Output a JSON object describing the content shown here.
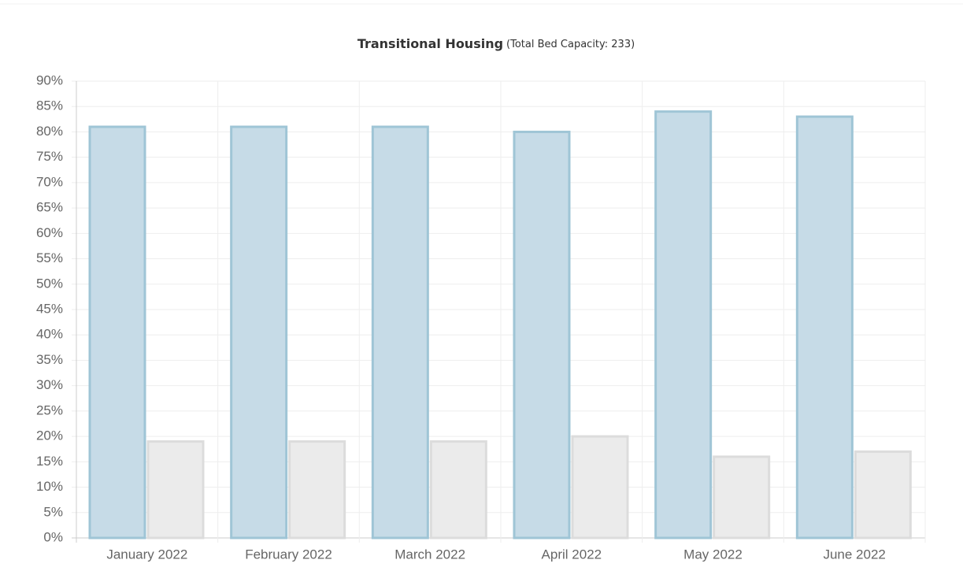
{
  "chart_data": {
    "type": "bar",
    "title": "Transitional Housing",
    "subtitle": "(Total Bed Capacity: 233)",
    "categories": [
      "January 2022",
      "February 2022",
      "March 2022",
      "April 2022",
      "May 2022",
      "June 2022"
    ],
    "series": [
      {
        "color": "#c6dbe7",
        "values": [
          81,
          81,
          81,
          80,
          84,
          83
        ]
      },
      {
        "color": "#ebebeb",
        "values": [
          19,
          19,
          19,
          20,
          16,
          17
        ]
      }
    ],
    "ylim": [
      0,
      90
    ],
    "yticks": [
      {
        "value": 0,
        "label": "0%"
      },
      {
        "value": 5,
        "label": "5%"
      },
      {
        "value": 10,
        "label": "10%"
      },
      {
        "value": 15,
        "label": "15%"
      },
      {
        "value": 20,
        "label": "20%"
      },
      {
        "value": 25,
        "label": "25%"
      },
      {
        "value": 30,
        "label": "30%"
      },
      {
        "value": 35,
        "label": "35%"
      },
      {
        "value": 40,
        "label": "40%"
      },
      {
        "value": 45,
        "label": "45%"
      },
      {
        "value": 50,
        "label": "50%"
      },
      {
        "value": 55,
        "label": "55%"
      },
      {
        "value": 60,
        "label": "60%"
      },
      {
        "value": 65,
        "label": "65%"
      },
      {
        "value": 70,
        "label": "70%"
      },
      {
        "value": 75,
        "label": "75%"
      },
      {
        "value": 80,
        "label": "80%"
      },
      {
        "value": 85,
        "label": "85%"
      },
      {
        "value": 90,
        "label": "90%"
      }
    ],
    "grid": true
  }
}
